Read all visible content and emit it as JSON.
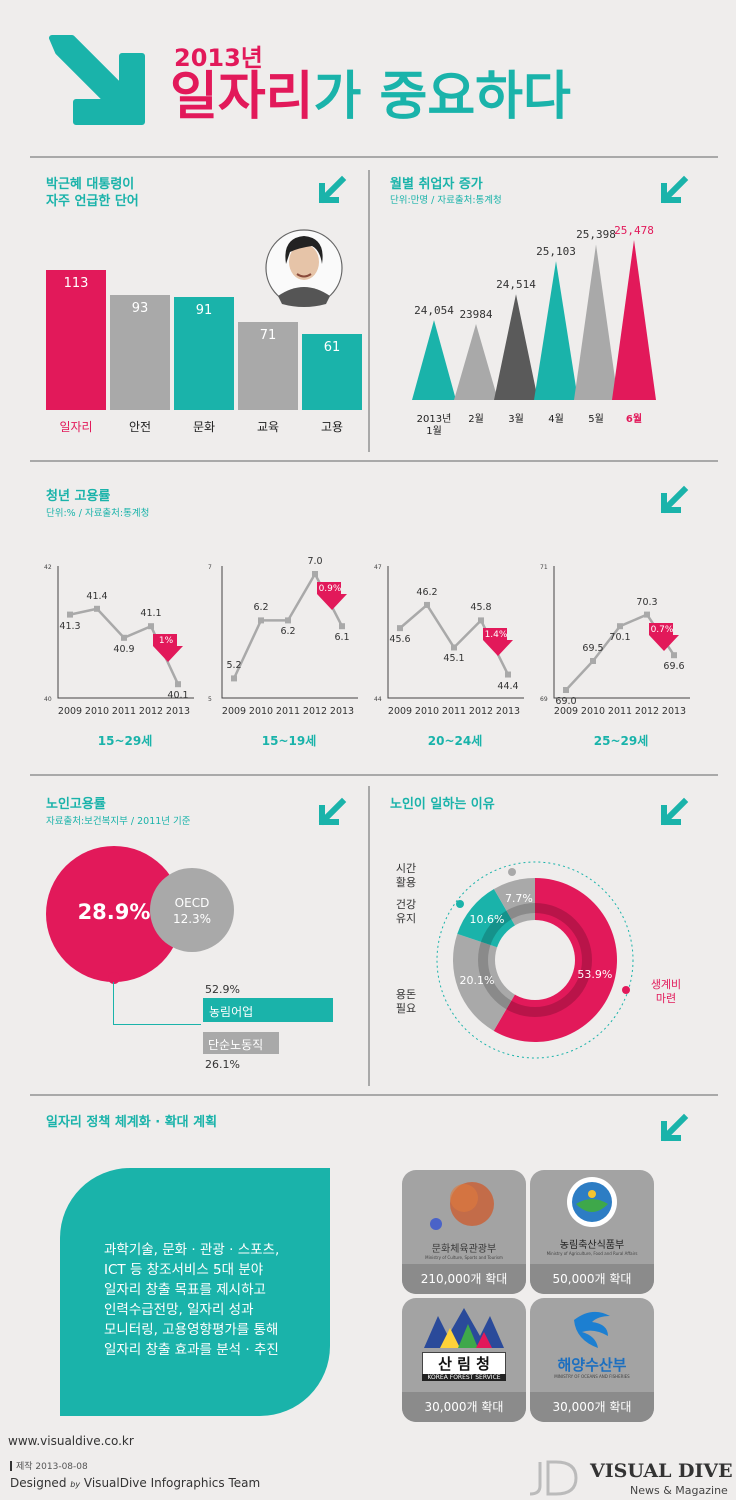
{
  "header": {
    "year": "2013년",
    "title_highlight": "일자리",
    "title_rest": "가 중요하다"
  },
  "colors": {
    "teal": "#1ab3aa",
    "pink": "#e2195a",
    "gray": "#a9a9a9",
    "dark": "#5a5a5a"
  },
  "words": {
    "title": "박근혜 대통령이\n자주 언급한 단어"
  },
  "monthly": {
    "title": "월별 취업자 증가",
    "subtitle": "단위:만명 / 자료출처:통계청",
    "month_labels": [
      "2013년\n1월",
      "2월",
      "3월",
      "4월",
      "5월",
      "6월"
    ],
    "value_labels": [
      "24,054",
      "23984",
      "24,514",
      "25,103",
      "25,398",
      "25,478"
    ]
  },
  "youth": {
    "title": "청년 고용률",
    "subtitle": "단위:% / 자료출처:통계청",
    "captions": [
      "15~29세",
      "15~19세",
      "20~24세",
      "25~29세"
    ],
    "badges": [
      "1%",
      "0.9%",
      "1.4%",
      "0.7%"
    ]
  },
  "elderly": {
    "title": "노인고용률",
    "subtitle": "자료출처:보건복지부 / 2011년 기준",
    "korea_value": "28.9%",
    "oecd_label": "OECD",
    "oecd_value": "12.3%",
    "farm_value": "52.9%",
    "farm_label": "농림어업",
    "labor_label": "단순노동직",
    "labor_value": "26.1%"
  },
  "reasons": {
    "title": "노인이 일하는 이유",
    "labels": [
      "시간\n활용",
      "건강\n유지",
      "용돈\n필요",
      "생계비\n마련"
    ]
  },
  "policy": {
    "title": "일자리 정책 체계화 · 확대 계획",
    "text": "과학기술, 문화 · 관광 · 스포츠,\nICT 등 창조서비스 5대 분야\n일자리 창출 목표를 제시하고\n인력수급전망, 일자리 성과\n모니터링, 고용영향평가를 통해\n일자리 창출 효과를 분석 · 추진",
    "tiles": [
      {
        "name": "문화체육관광부",
        "sub": "Ministry of Culture, Sports and Tourism",
        "amount": "210,000개 확대"
      },
      {
        "name": "농림축산식품부",
        "sub": "Ministry of Agriculture, Food and Rural Affairs",
        "amount": "50,000개 확대"
      },
      {
        "name": "산 림 청",
        "sub": "KOREA FOREST SERVICE",
        "amount": "30,000개 확대"
      },
      {
        "name": "해양수산부",
        "sub": "MINISTRY OF OCEANS AND FISHERIES",
        "amount": "30,000개 확대"
      }
    ]
  },
  "footer": {
    "url": "www.visualdive.co.kr",
    "date": "제작 2013-08-08",
    "designed": "Designed",
    "by": "by",
    "team": "VisualDive Infographics Team",
    "brand": "VISUAL DIVE",
    "brand_sub": "News & Magazine"
  },
  "chart_data": [
    {
      "type": "bar",
      "categories": [
        "일자리",
        "안전",
        "문화",
        "교육",
        "고용"
      ],
      "values": [
        113,
        93,
        91,
        71,
        61
      ],
      "colors": [
        "#e2195a",
        "#a9a9a9",
        "#1ab3aa",
        "#a9a9a9",
        "#1ab3aa"
      ]
    },
    {
      "type": "area",
      "title": "월별 취업자 증가",
      "categories": [
        "2013년 1월",
        "2월",
        "3월",
        "4월",
        "5월",
        "6월"
      ],
      "values": [
        24054,
        23984,
        24514,
        25103,
        25398,
        25478
      ],
      "colors": [
        "#1ab3aa",
        "#a9a9a9",
        "#5a5a5a",
        "#1ab3aa",
        "#a9a9a9",
        "#e2195a"
      ]
    },
    {
      "type": "line",
      "caption": "15~29세",
      "x": [
        2009,
        2010,
        2011,
        2012,
        2013
      ],
      "y": [
        41.3,
        41.4,
        40.9,
        41.1,
        40.1
      ],
      "ylim": [
        40,
        42
      ],
      "ytick_labels": [
        "42",
        "40"
      ]
    },
    {
      "type": "line",
      "caption": "15~19세",
      "x": [
        2009,
        2010,
        2011,
        2012,
        2013
      ],
      "y": [
        5.2,
        6.2,
        6.2,
        7.0,
        6.1
      ],
      "ylim": [
        5,
        7
      ],
      "ytick_labels": [
        "7",
        "5"
      ]
    },
    {
      "type": "line",
      "caption": "20~24세",
      "x": [
        2009,
        2010,
        2011,
        2012,
        2013
      ],
      "y": [
        45.6,
        46.2,
        45.1,
        45.8,
        44.4
      ],
      "ylim": [
        44,
        47
      ],
      "ytick_labels": [
        "47",
        "44"
      ]
    },
    {
      "type": "line",
      "caption": "25~29세",
      "x": [
        2009,
        2010,
        2011,
        2012,
        2013
      ],
      "y": [
        69.0,
        69.5,
        70.1,
        70.3,
        69.6
      ],
      "ylim": [
        69,
        71
      ],
      "ytick_labels": [
        "71",
        "69"
      ]
    },
    {
      "type": "pie",
      "title": "노인이 일하는 이유",
      "categories": [
        "생계비 마련",
        "용돈 필요",
        "건강 유지",
        "시간 활용"
      ],
      "values": [
        53.9,
        20.1,
        10.6,
        7.7
      ],
      "value_labels": [
        "53.9%",
        "20.1%",
        "10.6%",
        "7.7%"
      ],
      "colors": [
        "#e2195a",
        "#a9a9a9",
        "#1ab3aa",
        "#a9a9a9"
      ]
    }
  ]
}
